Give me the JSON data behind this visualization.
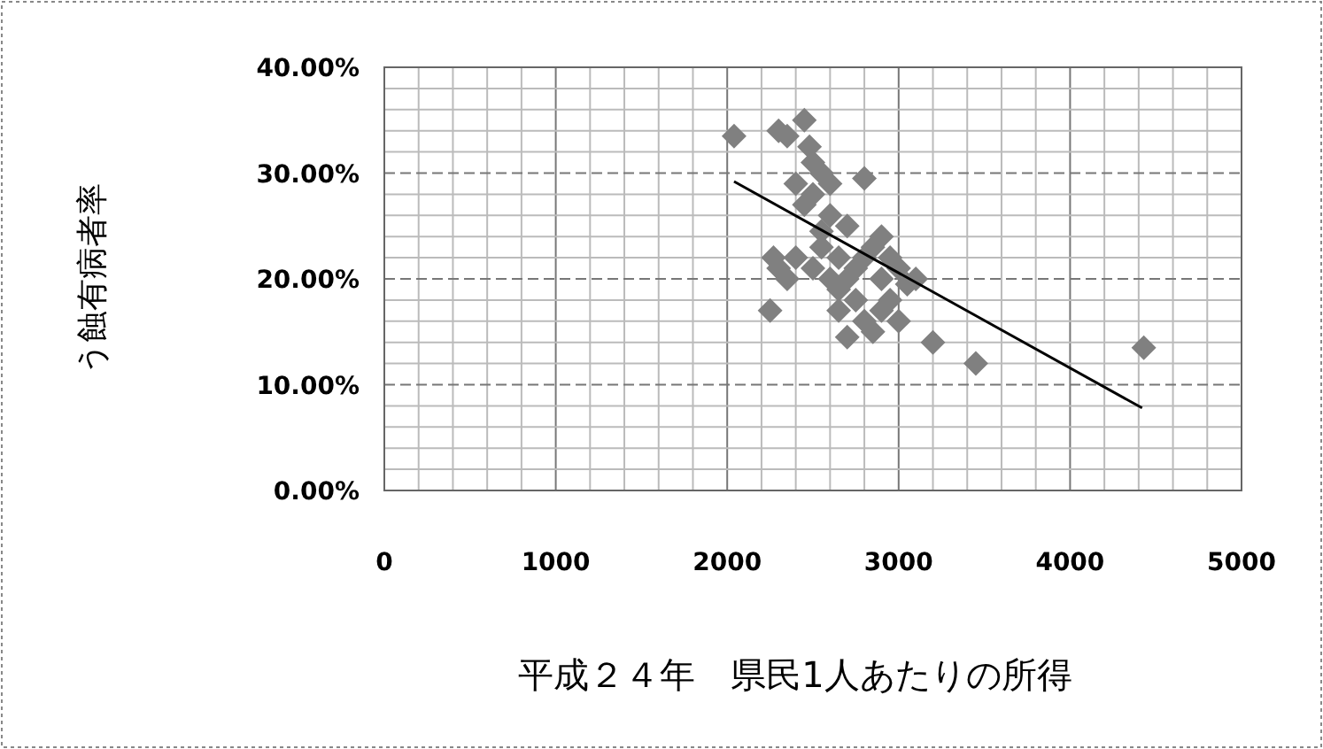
{
  "chart_data": {
    "type": "scatter",
    "xlabel": "平成２４年　県民1人あたりの所得",
    "ylabel": "う蝕有病者率",
    "xlim": [
      0,
      5000
    ],
    "xticks": [
      0,
      1000,
      2000,
      3000,
      4000,
      5000
    ],
    "ylim": [
      0,
      40
    ],
    "yticks": [
      {
        "value": 0,
        "label": "0.00%"
      },
      {
        "value": 10,
        "label": "10.00%"
      },
      {
        "value": 20,
        "label": "20.00%"
      },
      {
        "value": 30,
        "label": "30.00%"
      },
      {
        "value": 40,
        "label": "40.00%"
      }
    ],
    "grid": true,
    "marker": "diamond",
    "series": [
      {
        "color": "#808080",
        "x": [
          2040,
          2250,
          2270,
          2300,
          2350,
          2450,
          2480,
          2500,
          2400,
          2450,
          2550,
          2600,
          2500,
          2800,
          2700,
          2300,
          2350,
          2400,
          2500,
          2550,
          2600,
          2650,
          2700,
          2650,
          2750,
          2800,
          2850,
          2900,
          2950,
          2900,
          2950,
          2900,
          2850,
          2800,
          3000,
          3050,
          3100,
          3000,
          2750,
          2700,
          3200,
          3450,
          4430,
          2600,
          2550,
          2650
        ],
        "values": [
          33.5,
          17,
          22,
          34,
          33.5,
          35,
          32.5,
          31,
          29,
          27,
          30,
          29,
          28,
          29.5,
          25,
          21,
          20,
          22,
          21,
          23,
          20,
          17,
          14.5,
          19,
          18,
          16,
          15,
          17,
          18,
          20,
          22,
          24,
          23,
          22,
          21,
          19.5,
          20,
          16,
          21,
          20,
          14,
          12,
          13.5,
          26,
          24.5,
          22
        ]
      },
      {
        "type": "line",
        "color": "#000000",
        "marker": "none",
        "x": [
          2040,
          4420
        ],
        "values": [
          29.2,
          7.8
        ]
      }
    ]
  }
}
